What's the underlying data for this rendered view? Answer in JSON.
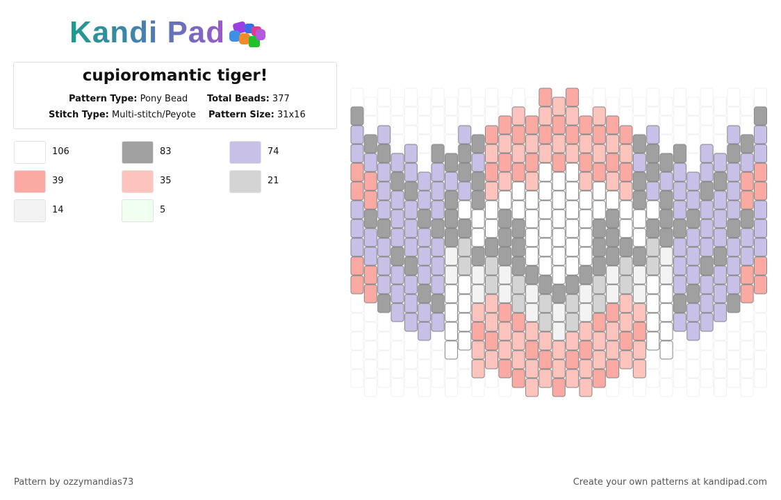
{
  "logo": "Kandi Pad",
  "title": "cupioromantic tiger!",
  "info": [
    {
      "label": "Pattern Type:",
      "value": "Pony Bead"
    },
    {
      "label": "Total Beads:",
      "value": 377
    },
    {
      "label": "Stitch Type:",
      "value": "Multi-stitch/Peyote"
    },
    {
      "label": "Pattern Size:",
      "value": "31x16"
    }
  ],
  "colors": [
    {
      "color": "#ffffff",
      "count": 106
    },
    {
      "color": "#a0a0a0",
      "count": 83
    },
    {
      "color": "#c9c0e8",
      "count": 74
    },
    {
      "color": "#fba9a3",
      "count": 39
    },
    {
      "color": "#fdc4be",
      "count": 35
    },
    {
      "color": "#d4d4d4",
      "count": 21
    },
    {
      "color": "#f3f3f3",
      "count": 14
    },
    {
      "color": "#f0fff0",
      "count": 5
    }
  ],
  "footer": {
    "credit": "Pattern by ozzymandias73",
    "link": "Create your own patterns at kandipad.com"
  }
}
